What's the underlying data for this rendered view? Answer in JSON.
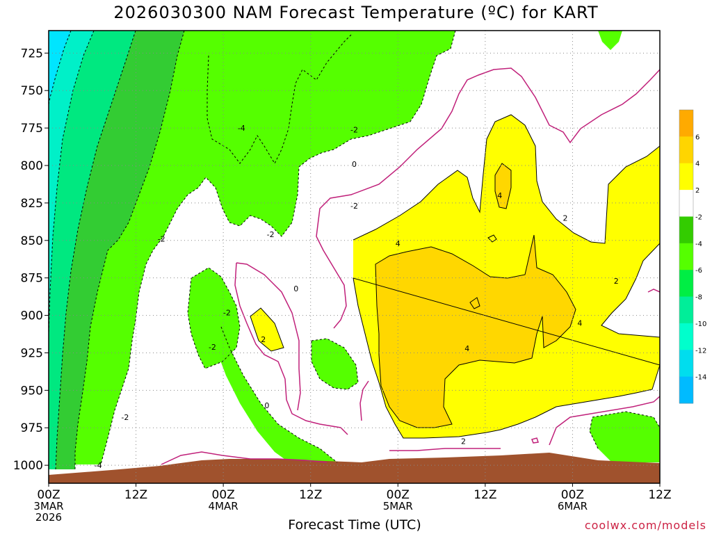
{
  "chart_data": {
    "type": "heatmap",
    "title": "2026030300 NAM Forecast Temperature (ºC) for KART",
    "xlabel": "Forecast Time (UTC)",
    "ylabel": "",
    "credit": "coolwx.com/models",
    "y_ticks": [
      725,
      750,
      775,
      800,
      825,
      850,
      875,
      900,
      925,
      950,
      975,
      1000
    ],
    "ylim": [
      1012,
      710
    ],
    "x_ticks": [
      {
        "hour": 0,
        "lines": [
          "00Z",
          "3MAR",
          "2026"
        ]
      },
      {
        "hour": 12,
        "lines": [
          "12Z"
        ]
      },
      {
        "hour": 24,
        "lines": [
          "00Z",
          "4MAR"
        ]
      },
      {
        "hour": 36,
        "lines": [
          "12Z"
        ]
      },
      {
        "hour": 48,
        "lines": [
          "00Z",
          "5MAR"
        ]
      },
      {
        "hour": 60,
        "lines": [
          "12Z"
        ]
      },
      {
        "hour": 72,
        "lines": [
          "00Z",
          "6MAR"
        ]
      },
      {
        "hour": 84,
        "lines": [
          "12Z"
        ]
      }
    ],
    "xlim": [
      0,
      84
    ],
    "grid": true,
    "colorbar": {
      "labels": [
        "6",
        "4",
        "2",
        "-2",
        "-4",
        "-6",
        "-8",
        "-10",
        "-12",
        "-14"
      ],
      "colors": [
        "#ffaa00",
        "#ffd500",
        "#ffff00",
        "#ffffff",
        "#33cc00",
        "#55ff00",
        "#00ee44",
        "#00ee99",
        "#00ffcc",
        "#00ddee",
        "#00bbff"
      ]
    },
    "fill_colors": {
      "very_cold": "#00e5ff",
      "cold": "#00f0c8",
      "cool": "#00e880",
      "green": "#33cc33",
      "lime": "#55ff00",
      "white": "#ffffff",
      "yellow": "#ffff00",
      "gold": "#ffd700",
      "orange": "#ffc000",
      "terrain": "#a0522d",
      "freezing_line": "#c0207a"
    },
    "contour_labels": [
      {
        "text": "-4",
        "hour": 26.5,
        "pres": 775
      },
      {
        "text": "-2",
        "hour": 42,
        "pres": 776
      },
      {
        "text": "0",
        "hour": 42,
        "pres": 799
      },
      {
        "text": "-2",
        "hour": 42,
        "pres": 827
      },
      {
        "text": "-2",
        "hour": 15.5,
        "pres": 849
      },
      {
        "text": "-2",
        "hour": 30.5,
        "pres": 846
      },
      {
        "text": "0",
        "hour": 34,
        "pres": 882
      },
      {
        "text": "-2",
        "hour": 24.5,
        "pres": 898
      },
      {
        "text": "-2",
        "hour": 22.5,
        "pres": 921
      },
      {
        "text": "2",
        "hour": 29.5,
        "pres": 916
      },
      {
        "text": "0",
        "hour": 30,
        "pres": 960
      },
      {
        "text": "-2",
        "hour": 10.5,
        "pres": 968
      },
      {
        "text": "-4",
        "hour": 6.8,
        "pres": 1000
      },
      {
        "text": "4",
        "hour": 48,
        "pres": 852
      },
      {
        "text": "4",
        "hour": 57.5,
        "pres": 922
      },
      {
        "text": "2",
        "hour": 57,
        "pres": 984
      },
      {
        "text": "4",
        "hour": 62,
        "pres": 820
      },
      {
        "text": "2",
        "hour": 71,
        "pres": 835
      },
      {
        "text": "2",
        "hour": 78,
        "pres": 877
      },
      {
        "text": "4",
        "hour": 73,
        "pres": 905
      }
    ]
  }
}
